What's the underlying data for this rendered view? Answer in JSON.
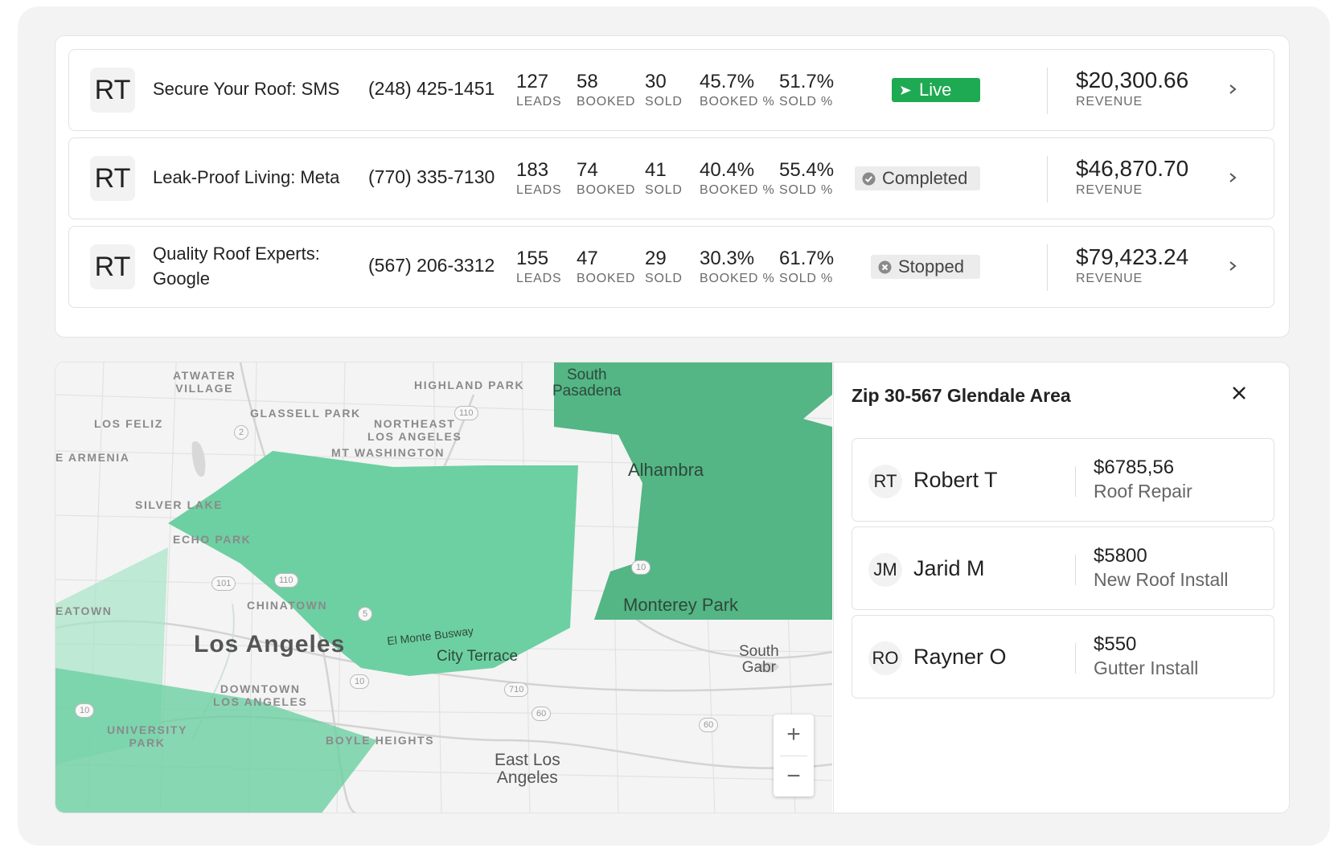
{
  "campaigns": [
    {
      "abbr": "RT",
      "name": "Secure Your Roof: SMS",
      "phone": "(248) 425-1451",
      "leads": "127",
      "booked": "58",
      "sold": "30",
      "booked_pct": "45.7%",
      "sold_pct": "51.7%",
      "status": "Live",
      "revenue": "$20,300.66"
    },
    {
      "abbr": "RT",
      "name": "Leak-Proof Living: Meta",
      "phone": "(770) 335-7130",
      "leads": "183",
      "booked": "74",
      "sold": "41",
      "booked_pct": "40.4%",
      "sold_pct": "55.4%",
      "status": "Completed",
      "revenue": "$46,870.70"
    },
    {
      "abbr": "RT",
      "name": "Quality Roof Experts: Google",
      "phone": "(567) 206-3312",
      "leads": "155",
      "booked": "47",
      "sold": "29",
      "booked_pct": "30.3%",
      "sold_pct": "61.7%",
      "status": "Stopped",
      "revenue": "$79,423.24"
    }
  ],
  "labels": {
    "leads": "LEADS",
    "booked": "BOOKED",
    "sold": "SOLD",
    "booked_pct": "BOOKED %",
    "sold_pct": "SOLD %",
    "revenue": "REVENUE"
  },
  "map": {
    "places": {
      "atwater": "ATWATER\nVILLAGE",
      "highland": "HIGHLAND PARK",
      "losfeliz": "LOS FELIZ",
      "glassell": "GLASSELL PARK",
      "northeast": "NORTHEAST\nLOS ANGELES",
      "armenia": "E ARMENIA",
      "mtwash": "MT WASHINGTON",
      "silver": "SILVER LAKE",
      "echo": "ECHO PARK",
      "eatown": "EATOWN",
      "chinatown": "CHINATOWN",
      "downtown": "DOWNTOWN\nLOS ANGELES",
      "university": "UNIVERSITY\nPARK",
      "boyle": "BOYLE HEIGHTS"
    },
    "cities": {
      "south_pasadena": "South\nPasadena",
      "alhambra": "Alhambra",
      "monterey": "Monterey Park",
      "city_terrace": "City Terrace",
      "el_monte": "El Monte Busway",
      "los_angeles": "Los Angeles",
      "east_la": "East Los\nAngeles",
      "south_gabr": "South\nGabr"
    },
    "shields": {
      "s2": "2",
      "s110a": "110",
      "s110b": "110",
      "s101": "101",
      "s5": "5",
      "s10a": "10",
      "s10b": "10",
      "s10c": "10",
      "s710": "710",
      "s60a": "60",
      "s60b": "60"
    },
    "zoom_in": "+",
    "zoom_out": "−",
    "colors": {
      "region": "#6dd0a2",
      "region_dark": "#54b585",
      "region_light": "#a6e4c6"
    }
  },
  "side_panel": {
    "title": "Zip 30-567 Glendale Area",
    "leads": [
      {
        "initials": "RT",
        "name": "Robert T",
        "amount": "$6785,56",
        "service": "Roof Repair"
      },
      {
        "initials": "JM",
        "name": "Jarid M",
        "amount": "$5800",
        "service": "New Roof Install"
      },
      {
        "initials": "RO",
        "name": "Rayner O",
        "amount": "$550",
        "service": "Gutter Install"
      }
    ]
  },
  "icons": {
    "live": "play-icon",
    "completed": "check-circle-icon",
    "stopped": "x-circle-icon",
    "chevron": "chevron-right-icon",
    "close": "close-icon"
  },
  "colors": {
    "live": "#1eaa52",
    "badge_neutral": "#ececec"
  }
}
